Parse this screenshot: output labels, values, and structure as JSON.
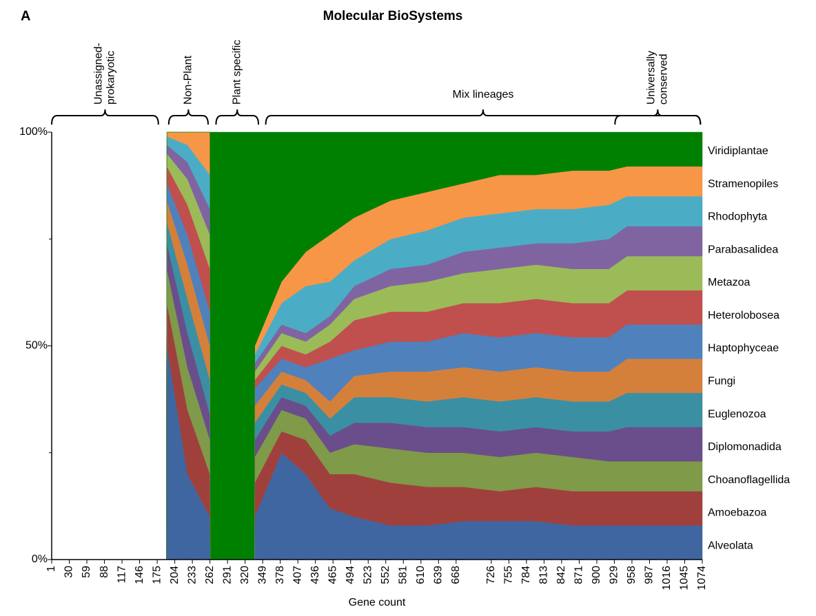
{
  "panel_label": "A",
  "chart_data": {
    "type": "stacked_area",
    "title": "Molecular BioSystems",
    "xlabel": "Gene count",
    "xlim": [
      1,
      1074
    ],
    "xticks": [
      1,
      30,
      59,
      88,
      117,
      146,
      175,
      204,
      233,
      262,
      291,
      320,
      349,
      378,
      407,
      436,
      465,
      494,
      523,
      552,
      581,
      610,
      639,
      668,
      726,
      755,
      784,
      813,
      842,
      871,
      900,
      929,
      958,
      987,
      1016,
      1045,
      1074
    ],
    "ylim": [
      0,
      100
    ],
    "yticks": [
      {
        "value": 0,
        "label": "0%"
      },
      {
        "value": 50,
        "label": "50%"
      },
      {
        "value": 100,
        "label": "100%"
      }
    ],
    "yminorticks": [
      25,
      75
    ],
    "annotations": [
      {
        "lines": [
          "Unassigned-",
          "prokaryotic"
        ],
        "range": [
          1,
          177
        ],
        "vertical": true
      },
      {
        "lines": [
          "Non-Plant"
        ],
        "range": [
          194,
          259
        ],
        "vertical": true
      },
      {
        "lines": [
          "Plant specific"
        ],
        "range": [
          272,
          342
        ],
        "vertical": true
      },
      {
        "lines": [
          "Mix lineages"
        ],
        "range": [
          354,
          1071
        ],
        "vertical": false
      },
      {
        "lines": [
          "Universally",
          "conserved"
        ],
        "range": [
          930,
          1071
        ],
        "vertical": true
      }
    ],
    "x": [
      1,
      190,
      191,
      225,
      262,
      263,
      335,
      336,
      380,
      420,
      460,
      500,
      560,
      620,
      680,
      740,
      800,
      860,
      920,
      950,
      1074
    ],
    "series": [
      {
        "name": "Viridiplantae",
        "color": "#008000",
        "values": [
          0,
          0,
          0,
          0,
          0,
          100,
          100,
          50,
          35,
          28,
          24,
          20,
          16,
          14,
          12,
          10,
          10,
          9,
          9,
          8,
          8
        ]
      },
      {
        "name": "Stramenopiles",
        "color": "#f79646",
        "values": [
          0,
          0,
          1,
          3,
          10,
          0,
          0,
          2,
          5,
          8,
          11,
          10,
          9,
          9,
          8,
          9,
          8,
          9,
          8,
          7,
          7
        ]
      },
      {
        "name": "Rhodophyta",
        "color": "#4bacc6",
        "values": [
          0,
          0,
          2,
          4,
          8,
          0,
          0,
          2,
          5,
          11,
          8,
          6,
          7,
          8,
          8,
          8,
          8,
          8,
          8,
          7,
          7
        ]
      },
      {
        "name": "Parabasalidea",
        "color": "#8064a2",
        "values": [
          0,
          0,
          2,
          4,
          6,
          0,
          0,
          2,
          2,
          2,
          2,
          3,
          4,
          4,
          5,
          5,
          5,
          6,
          7,
          7,
          7
        ]
      },
      {
        "name": "Metazoa",
        "color": "#9bbb59",
        "values": [
          0,
          0,
          3,
          6,
          8,
          0,
          0,
          2,
          3,
          3,
          4,
          5,
          6,
          7,
          7,
          8,
          8,
          8,
          8,
          8,
          8
        ]
      },
      {
        "name": "Heterolobosea",
        "color": "#c0504d",
        "values": [
          0,
          0,
          4,
          7,
          10,
          0,
          0,
          2,
          3,
          3,
          4,
          7,
          7,
          7,
          7,
          8,
          8,
          8,
          8,
          8,
          8
        ]
      },
      {
        "name": "Haptophyceae",
        "color": "#4f81bd",
        "values": [
          0,
          0,
          4,
          7,
          8,
          0,
          0,
          4,
          3,
          3,
          10,
          6,
          7,
          7,
          8,
          8,
          8,
          8,
          8,
          8,
          8
        ]
      },
      {
        "name": "Fungi",
        "color": "#d4803b",
        "values": [
          0,
          0,
          5,
          8,
          8,
          0,
          0,
          4,
          3,
          3,
          4,
          5,
          6,
          7,
          7,
          7,
          7,
          7,
          7,
          8,
          8
        ]
      },
      {
        "name": "Euglenozoa",
        "color": "#3b8fa3",
        "values": [
          0,
          0,
          5,
          8,
          8,
          0,
          0,
          4,
          3,
          3,
          4,
          6,
          6,
          6,
          7,
          7,
          7,
          7,
          7,
          8,
          8
        ]
      },
      {
        "name": "Diplomonadida",
        "color": "#6a4e8c",
        "values": [
          0,
          0,
          6,
          8,
          6,
          0,
          0,
          4,
          3,
          3,
          4,
          5,
          6,
          6,
          6,
          6,
          6,
          6,
          7,
          8,
          8
        ]
      },
      {
        "name": "Choanoflagellida",
        "color": "#7f9a48",
        "values": [
          0,
          0,
          8,
          10,
          8,
          0,
          0,
          6,
          5,
          5,
          5,
          7,
          8,
          8,
          8,
          8,
          8,
          8,
          7,
          7,
          7
        ]
      },
      {
        "name": "Amoebazoa",
        "color": "#a0403d",
        "values": [
          0,
          0,
          10,
          15,
          10,
          0,
          0,
          8,
          5,
          8,
          8,
          10,
          10,
          9,
          8,
          7,
          8,
          8,
          8,
          8,
          8
        ]
      },
      {
        "name": "Alveolata",
        "color": "#3f66a0",
        "values": [
          0,
          0,
          50,
          20,
          10,
          0,
          0,
          10,
          25,
          20,
          12,
          10,
          8,
          8,
          9,
          9,
          9,
          8,
          8,
          8,
          8
        ]
      }
    ]
  }
}
